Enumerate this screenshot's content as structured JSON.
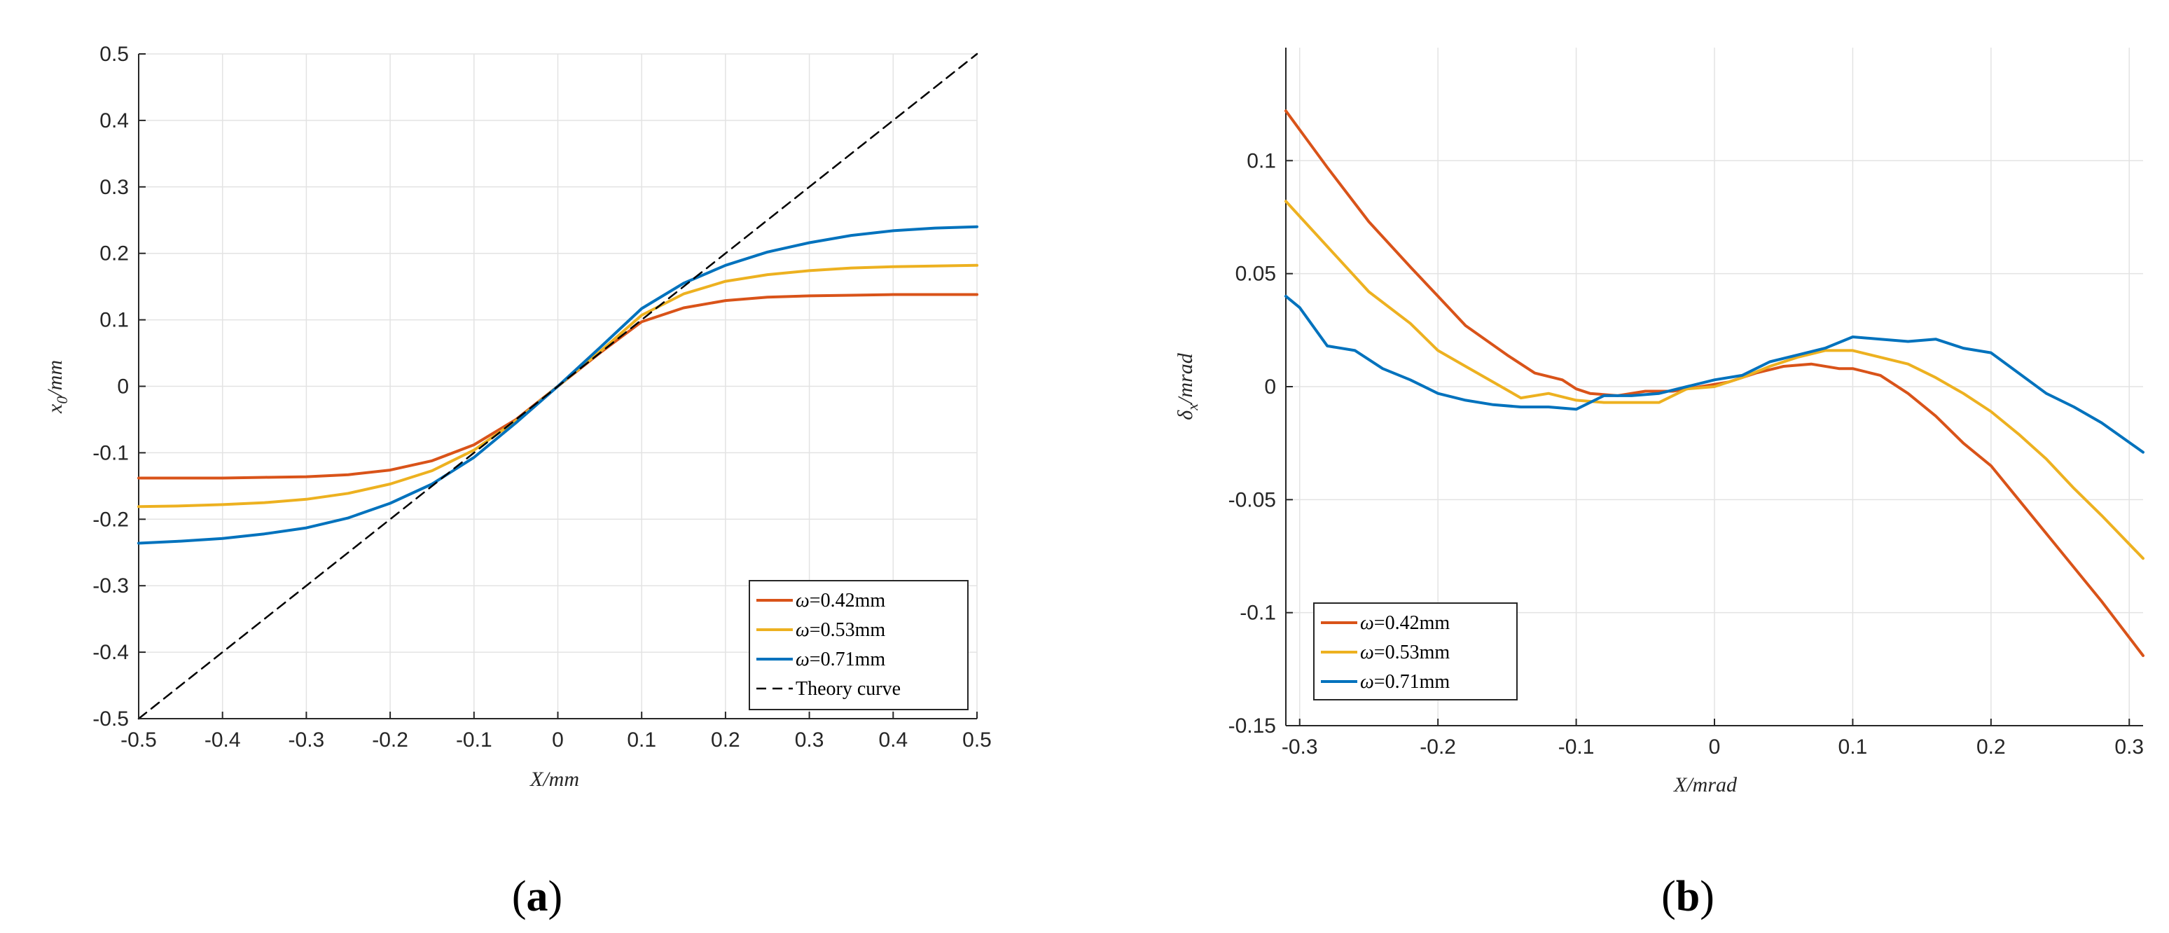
{
  "chart_data": [
    {
      "panel": "a",
      "type": "line",
      "panel_label_open": "(",
      "panel_letter": "a",
      "panel_label_close": ")",
      "xlabel": "X/mm",
      "ylabel": "x",
      "ylabel_sub": "0",
      "ylabel_suffix": "/mm",
      "xlim": [
        -0.5,
        0.5
      ],
      "ylim": [
        -0.5,
        0.5
      ],
      "xticks": [
        -0.5,
        -0.4,
        -0.3,
        -0.2,
        -0.1,
        0,
        0.1,
        0.2,
        0.3,
        0.4,
        0.5
      ],
      "yticks": [
        -0.5,
        -0.4,
        -0.3,
        -0.2,
        -0.1,
        0,
        0.1,
        0.2,
        0.3,
        0.4,
        0.5
      ],
      "grid": true,
      "legend_location": "bottom-right",
      "series": [
        {
          "name": "ω=0.42mm",
          "symbol": "ω",
          "label": "=0.42mm",
          "color": "#D95319",
          "dash": "",
          "x": [
            -0.5,
            -0.45,
            -0.4,
            -0.35,
            -0.3,
            -0.25,
            -0.2,
            -0.15,
            -0.1,
            -0.05,
            0,
            0.05,
            0.1,
            0.15,
            0.2,
            0.25,
            0.3,
            0.35,
            0.4,
            0.45,
            0.5
          ],
          "y": [
            -0.138,
            -0.138,
            -0.138,
            -0.137,
            -0.136,
            -0.133,
            -0.126,
            -0.112,
            -0.088,
            -0.05,
            0,
            0.05,
            0.097,
            0.118,
            0.129,
            0.134,
            0.136,
            0.137,
            0.138,
            0.138,
            0.138
          ]
        },
        {
          "name": "ω=0.53mm",
          "symbol": "ω",
          "label": "=0.53mm",
          "color": "#EDB120",
          "dash": "",
          "x": [
            -0.5,
            -0.45,
            -0.4,
            -0.35,
            -0.3,
            -0.25,
            -0.2,
            -0.15,
            -0.1,
            -0.05,
            0,
            0.05,
            0.1,
            0.15,
            0.2,
            0.25,
            0.3,
            0.35,
            0.4,
            0.45,
            0.5
          ],
          "y": [
            -0.181,
            -0.18,
            -0.178,
            -0.175,
            -0.17,
            -0.161,
            -0.147,
            -0.127,
            -0.096,
            -0.052,
            0,
            0.052,
            0.107,
            0.139,
            0.158,
            0.168,
            0.174,
            0.178,
            0.18,
            0.181,
            0.182
          ]
        },
        {
          "name": "ω=0.71mm",
          "symbol": "ω",
          "label": "=0.71mm",
          "color": "#0072BD",
          "dash": "",
          "x": [
            -0.5,
            -0.45,
            -0.4,
            -0.35,
            -0.3,
            -0.25,
            -0.2,
            -0.15,
            -0.1,
            -0.05,
            0,
            0.05,
            0.1,
            0.15,
            0.2,
            0.25,
            0.3,
            0.35,
            0.4,
            0.45,
            0.5
          ],
          "y": [
            -0.236,
            -0.233,
            -0.229,
            -0.222,
            -0.213,
            -0.198,
            -0.176,
            -0.147,
            -0.107,
            -0.055,
            0,
            0.058,
            0.117,
            0.155,
            0.182,
            0.202,
            0.216,
            0.227,
            0.234,
            0.238,
            0.24
          ]
        },
        {
          "name": "Theory curve",
          "symbol": "",
          "label": "Theory curve",
          "color": "#000000",
          "dash": "14,9",
          "x": [
            -0.5,
            0.5
          ],
          "y": [
            -0.5,
            0.5
          ]
        }
      ]
    },
    {
      "panel": "b",
      "type": "line",
      "panel_label_open": "(",
      "panel_letter": "b",
      "panel_label_close": ")",
      "xlabel": "X/mrad",
      "ylabel": "δ",
      "ylabel_sub": "x",
      "ylabel_suffix": "/mrad",
      "xlim": [
        -0.31,
        0.31
      ],
      "ylim": [
        -0.15,
        0.15
      ],
      "xticks": [
        -0.3,
        -0.2,
        -0.1,
        0,
        0.1,
        0.2,
        0.3
      ],
      "yticks": [
        -0.15,
        -0.1,
        -0.05,
        0,
        0.05,
        0.1
      ],
      "grid": true,
      "legend_location": "bottom-left",
      "series": [
        {
          "name": "ω=0.42mm",
          "symbol": "ω",
          "label": "=0.42mm",
          "color": "#D95319",
          "dash": "",
          "x": [
            -0.31,
            -0.28,
            -0.25,
            -0.22,
            -0.2,
            -0.18,
            -0.15,
            -0.13,
            -0.11,
            -0.1,
            -0.09,
            -0.07,
            -0.05,
            -0.03,
            -0.01,
            0.01,
            0.03,
            0.05,
            0.07,
            0.09,
            0.1,
            0.12,
            0.14,
            0.16,
            0.18,
            0.2,
            0.22,
            0.24,
            0.26,
            0.28,
            0.31
          ],
          "y": [
            0.122,
            0.097,
            0.073,
            0.053,
            0.04,
            0.027,
            0.014,
            0.006,
            0.003,
            -0.001,
            -0.003,
            -0.004,
            -0.002,
            -0.002,
            0.0,
            0.002,
            0.006,
            0.009,
            0.01,
            0.008,
            0.008,
            0.005,
            -0.003,
            -0.013,
            -0.025,
            -0.035,
            -0.05,
            -0.065,
            -0.08,
            -0.095,
            -0.119
          ]
        },
        {
          "name": "ω=0.53mm",
          "symbol": "ω",
          "label": "=0.53mm",
          "color": "#EDB120",
          "dash": "",
          "x": [
            -0.31,
            -0.28,
            -0.25,
            -0.22,
            -0.2,
            -0.18,
            -0.16,
            -0.14,
            -0.12,
            -0.1,
            -0.08,
            -0.06,
            -0.04,
            -0.02,
            0,
            0.02,
            0.04,
            0.06,
            0.08,
            0.1,
            0.12,
            0.14,
            0.16,
            0.18,
            0.2,
            0.22,
            0.24,
            0.26,
            0.28,
            0.31
          ],
          "y": [
            0.082,
            0.062,
            0.042,
            0.028,
            0.016,
            0.009,
            0.002,
            -0.005,
            -0.003,
            -0.006,
            -0.007,
            -0.007,
            -0.007,
            -0.001,
            0.0,
            0.004,
            0.009,
            0.013,
            0.016,
            0.016,
            0.013,
            0.01,
            0.004,
            -0.003,
            -0.011,
            -0.021,
            -0.032,
            -0.045,
            -0.057,
            -0.076
          ]
        },
        {
          "name": "ω=0.71mm",
          "symbol": "ω",
          "label": "=0.71mm",
          "color": "#0072BD",
          "dash": "",
          "x": [
            -0.31,
            -0.3,
            -0.28,
            -0.26,
            -0.24,
            -0.22,
            -0.2,
            -0.18,
            -0.16,
            -0.14,
            -0.12,
            -0.1,
            -0.08,
            -0.06,
            -0.04,
            -0.02,
            0,
            0.02,
            0.04,
            0.06,
            0.08,
            0.1,
            0.12,
            0.14,
            0.16,
            0.18,
            0.2,
            0.22,
            0.24,
            0.26,
            0.28,
            0.31
          ],
          "y": [
            0.04,
            0.035,
            0.018,
            0.016,
            0.008,
            0.003,
            -0.003,
            -0.006,
            -0.008,
            -0.009,
            -0.009,
            -0.01,
            -0.004,
            -0.004,
            -0.003,
            0.0,
            0.003,
            0.005,
            0.011,
            0.014,
            0.017,
            0.022,
            0.021,
            0.02,
            0.021,
            0.017,
            0.015,
            0.006,
            -0.003,
            -0.009,
            -0.016,
            -0.029
          ]
        }
      ]
    }
  ]
}
